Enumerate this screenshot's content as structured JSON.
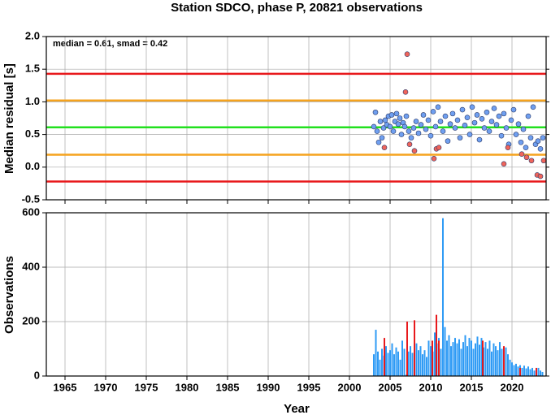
{
  "chart_data": [
    {
      "type": "scatter",
      "title": "Station SDCO, phase P, 20821 observations",
      "ylabel": "Median residual [s]",
      "annotation": "median = 0.61, smad = 0.42",
      "xlim": [
        1962.7,
        2024.2
      ],
      "xticks": [
        1965,
        1970,
        1975,
        1980,
        1985,
        1990,
        1995,
        2000,
        2005,
        2010,
        2015,
        2020
      ],
      "ylim": [
        -0.5,
        2.0
      ],
      "yticks": [
        {
          "value": -0.5,
          "label": "-0.5"
        },
        {
          "value": 0,
          "label": "0.0"
        },
        0.5,
        {
          "value": 1,
          "label": "1.0"
        },
        1.5,
        {
          "value": 2,
          "label": "2.0"
        }
      ],
      "grid": true,
      "hlines": [
        {
          "value": 1.43,
          "color": "#e8191c"
        },
        {
          "value": 1.02,
          "color": "#f5a31e"
        },
        {
          "value": 0.61,
          "color": "#22e01e"
        },
        {
          "value": 0.19,
          "color": "#f5a31e"
        },
        {
          "value": -0.22,
          "color": "#e8191c"
        }
      ],
      "series": [
        {
          "color": "#6f9ff0",
          "x": [
            2003.0,
            2003.2,
            2003.4,
            2003.6,
            2003.8,
            2004.0,
            2004.2,
            2004.4,
            2004.6,
            2004.8,
            2005.0,
            2005.2,
            2005.4,
            2005.6,
            2005.8,
            2006.0,
            2006.2,
            2006.4,
            2006.6,
            2006.8,
            2007.0,
            2007.3,
            2007.6,
            2007.9,
            2008.2,
            2008.5,
            2008.8,
            2009.1,
            2009.4,
            2009.7,
            2010.0,
            2010.3,
            2010.6,
            2010.9,
            2011.2,
            2011.5,
            2011.8,
            2012.1,
            2012.4,
            2012.7,
            2013.0,
            2013.3,
            2013.6,
            2013.9,
            2014.2,
            2014.5,
            2014.8,
            2015.1,
            2015.4,
            2015.7,
            2016.0,
            2016.3,
            2016.6,
            2016.9,
            2017.2,
            2017.5,
            2017.8,
            2018.1,
            2018.4,
            2018.7,
            2019.0,
            2019.3,
            2019.6,
            2019.9,
            2020.2,
            2020.5,
            2020.8,
            2021.1,
            2021.4,
            2021.7,
            2022.0,
            2022.3,
            2022.6,
            2022.9,
            2023.2,
            2023.5,
            2023.8
          ],
          "values": [
            0.62,
            0.84,
            0.55,
            0.38,
            0.7,
            0.45,
            0.6,
            0.72,
            0.65,
            0.78,
            0.62,
            0.8,
            0.55,
            0.7,
            0.82,
            0.66,
            0.75,
            0.5,
            0.68,
            0.62,
            0.78,
            0.55,
            0.45,
            0.6,
            0.7,
            0.52,
            0.65,
            0.8,
            0.58,
            0.72,
            0.48,
            0.85,
            0.62,
            0.92,
            0.7,
            0.55,
            0.78,
            0.4,
            0.66,
            0.82,
            0.6,
            0.72,
            0.45,
            0.88,
            0.64,
            0.76,
            0.5,
            0.92,
            0.68,
            0.8,
            0.42,
            0.74,
            0.6,
            0.84,
            0.55,
            0.7,
            0.9,
            0.65,
            0.78,
            0.48,
            0.82,
            0.6,
            0.35,
            0.72,
            0.88,
            0.5,
            0.66,
            0.38,
            0.58,
            0.3,
            0.78,
            0.45,
            0.92,
            0.35,
            0.4,
            0.28,
            0.45
          ]
        },
        {
          "color": "#f0645a",
          "x": [
            2004.3,
            2006.9,
            2007.1,
            2007.4,
            2008.0,
            2010.4,
            2010.7,
            2011.0,
            2019.0,
            2019.5,
            2021.2,
            2021.8,
            2022.4,
            2023.1,
            2023.5,
            2023.9
          ],
          "values": [
            0.3,
            1.15,
            1.73,
            0.35,
            0.25,
            0.13,
            0.28,
            0.3,
            0.05,
            0.3,
            0.2,
            0.15,
            0.1,
            -0.12,
            -0.14,
            0.1
          ]
        }
      ]
    },
    {
      "type": "bar",
      "ylabel": "Observations",
      "xlabel": "Year",
      "xlim": [
        1962.7,
        2024.2
      ],
      "xticks": [
        1965,
        1970,
        1975,
        1980,
        1985,
        1990,
        1995,
        2000,
        2005,
        2010,
        2015,
        2020
      ],
      "ylim": [
        0,
        600
      ],
      "yticks": [
        0,
        200,
        400,
        600
      ],
      "grid": true,
      "series": [
        {
          "color": "#2f9bf5",
          "x": [
            2003.0,
            2003.25,
            2003.5,
            2003.75,
            2004.0,
            2004.25,
            2004.5,
            2004.75,
            2005.0,
            2005.25,
            2005.5,
            2005.75,
            2006.0,
            2006.25,
            2006.5,
            2006.75,
            2007.0,
            2007.25,
            2007.5,
            2007.75,
            2008.0,
            2008.25,
            2008.5,
            2008.75,
            2009.0,
            2009.25,
            2009.5,
            2009.75,
            2010.0,
            2010.25,
            2010.5,
            2010.75,
            2011.0,
            2011.25,
            2011.5,
            2011.75,
            2012.0,
            2012.25,
            2012.5,
            2012.75,
            2013.0,
            2013.25,
            2013.5,
            2013.75,
            2014.0,
            2014.25,
            2014.5,
            2014.75,
            2015.0,
            2015.25,
            2015.5,
            2015.75,
            2016.0,
            2016.25,
            2016.5,
            2016.75,
            2017.0,
            2017.25,
            2017.5,
            2017.75,
            2018.0,
            2018.25,
            2018.5,
            2018.75,
            2019.0,
            2019.25,
            2019.5,
            2019.75,
            2020.0,
            2020.25,
            2020.5,
            2020.75,
            2021.0,
            2021.25,
            2021.5,
            2021.75,
            2022.0,
            2022.25,
            2022.5,
            2022.75,
            2023.0,
            2023.25,
            2023.5,
            2023.75
          ],
          "values": [
            80,
            170,
            90,
            60,
            100,
            75,
            110,
            85,
            95,
            120,
            80,
            105,
            90,
            60,
            130,
            100,
            5,
            90,
            110,
            85,
            100,
            120,
            95,
            110,
            80,
            95,
            70,
            130,
            110,
            90,
            160,
            120,
            140,
            100,
            580,
            180,
            130,
            150,
            110,
            125,
            140,
            120,
            135,
            100,
            125,
            150,
            110,
            140,
            130,
            100,
            120,
            145,
            115,
            140,
            105,
            125,
            100,
            130,
            90,
            120,
            110,
            95,
            125,
            100,
            90,
            105,
            80,
            60,
            50,
            40,
            45,
            35,
            40,
            30,
            38,
            28,
            35,
            25,
            30,
            20,
            25,
            30,
            20,
            15
          ]
        },
        {
          "color": "#e8191c",
          "x": [
            2004.3,
            2007.1,
            2008.0,
            2010.2,
            2010.7,
            2011.0,
            2016.4,
            2019.0,
            2021.0,
            2023.0
          ],
          "values": [
            140,
            200,
            205,
            130,
            225,
            130,
            130,
            110,
            30,
            30
          ]
        }
      ]
    }
  ]
}
